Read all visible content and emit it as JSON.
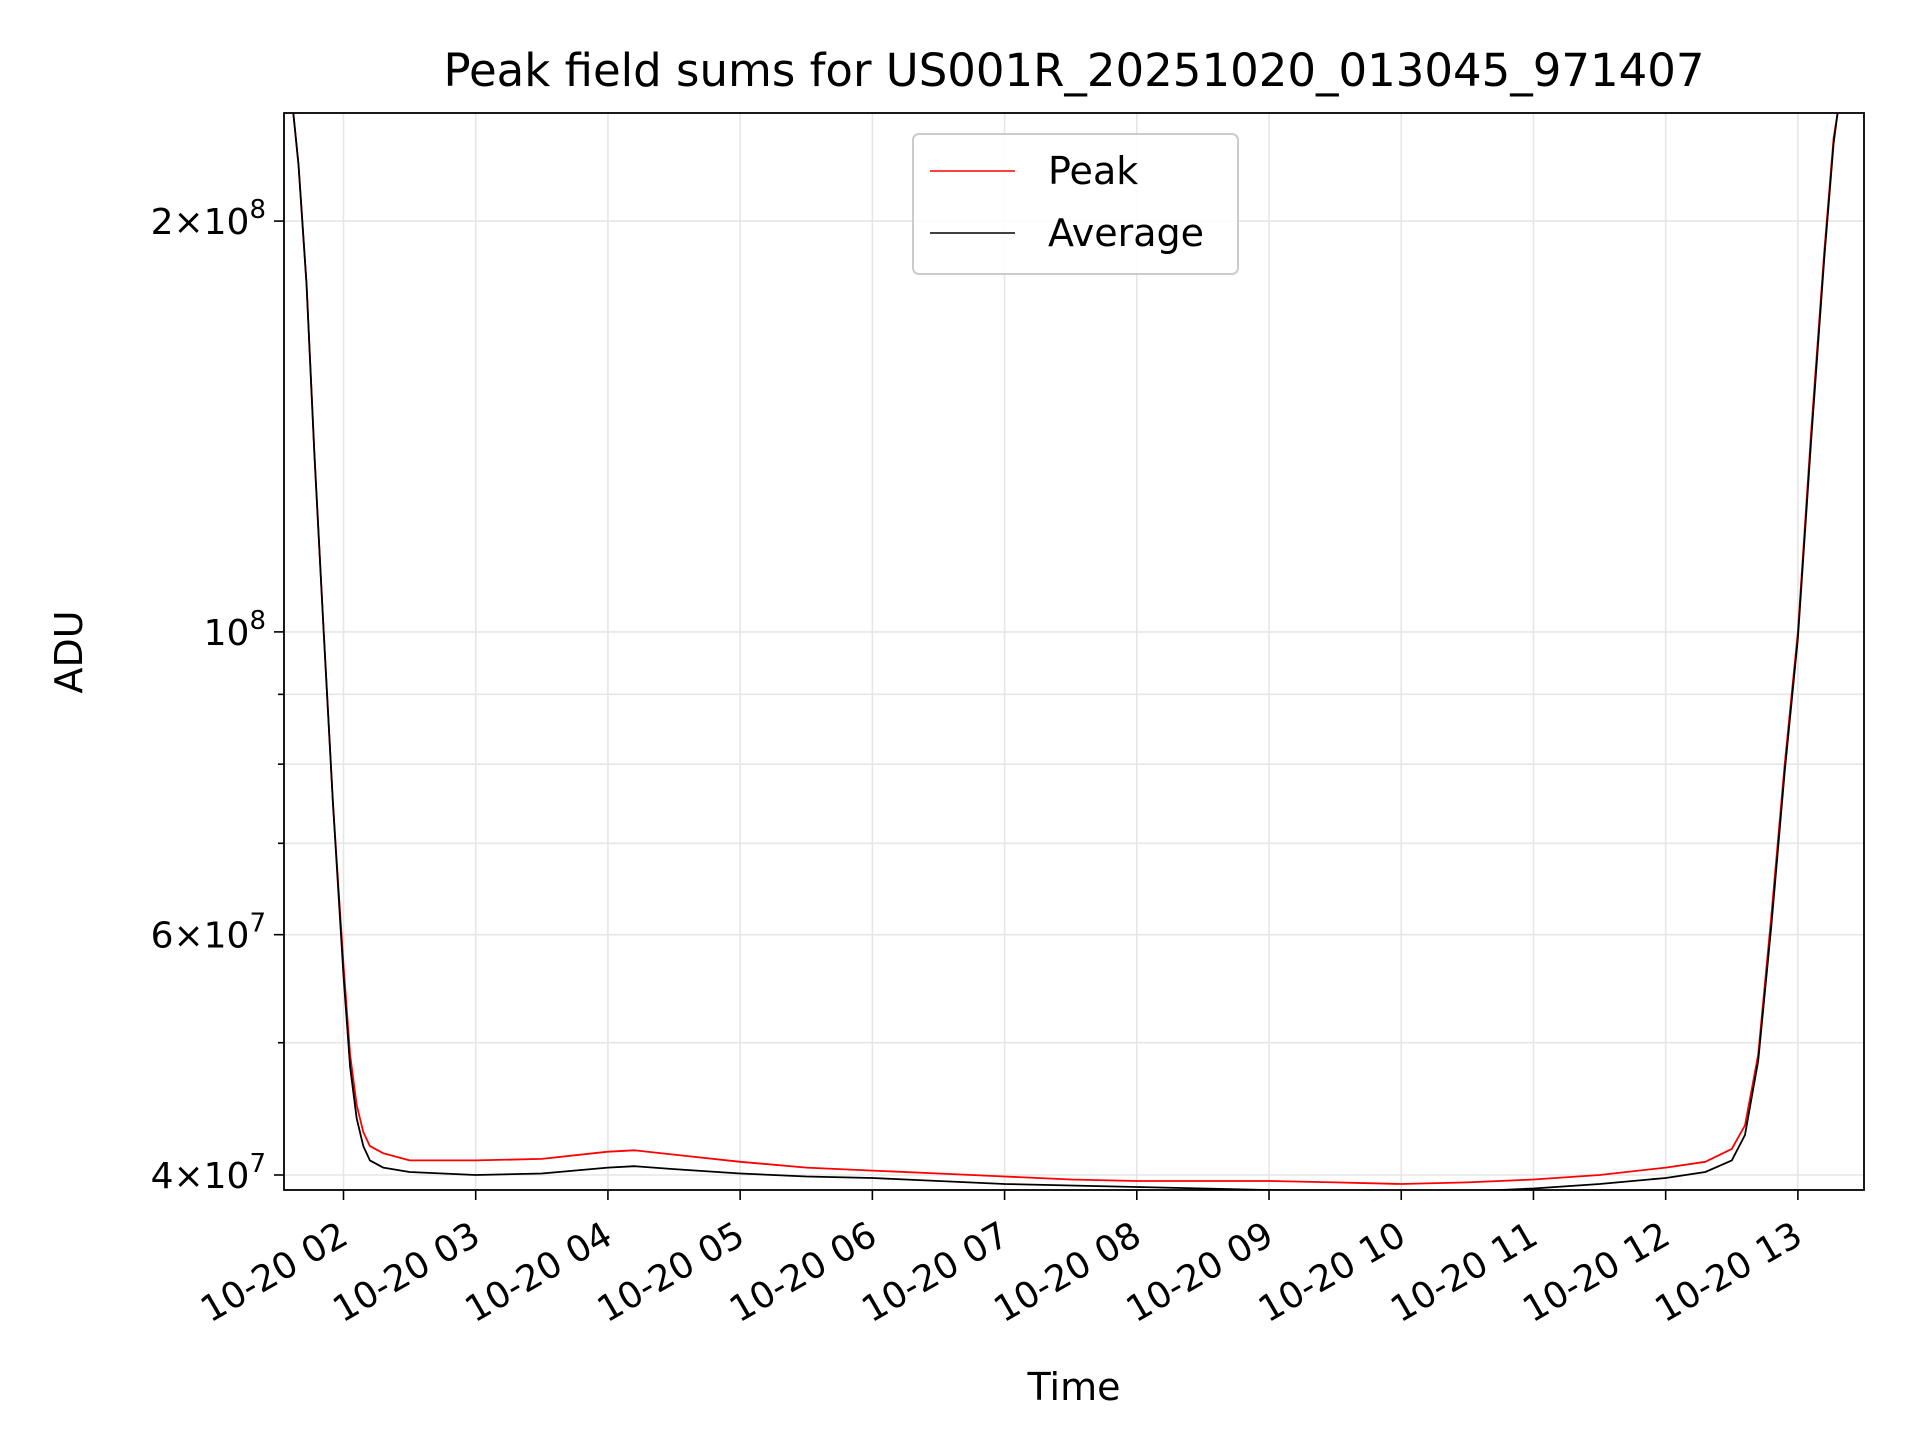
{
  "chart_data": {
    "type": "line",
    "title": "Peak field sums for US001R_20251020_013045_971407",
    "xlabel": "Time",
    "ylabel": "ADU",
    "yscale": "log",
    "ylim": [
      39000000,
      240000000
    ],
    "xlim": [
      1.55,
      13.5
    ],
    "grid": true,
    "legend_position": "top-center",
    "x_ticks": [
      {
        "value": 2,
        "label": "10-20 02"
      },
      {
        "value": 3,
        "label": "10-20 03"
      },
      {
        "value": 4,
        "label": "10-20 04"
      },
      {
        "value": 5,
        "label": "10-20 05"
      },
      {
        "value": 6,
        "label": "10-20 06"
      },
      {
        "value": 7,
        "label": "10-20 07"
      },
      {
        "value": 8,
        "label": "10-20 08"
      },
      {
        "value": 9,
        "label": "10-20 09"
      },
      {
        "value": 10,
        "label": "10-20 10"
      },
      {
        "value": 11,
        "label": "10-20 11"
      },
      {
        "value": 12,
        "label": "10-20 12"
      },
      {
        "value": 13,
        "label": "10-20 13"
      }
    ],
    "y_ticks_major": [
      {
        "value": 40000000,
        "mantissa": "4",
        "exp": "7"
      },
      {
        "value": 60000000,
        "mantissa": "6",
        "exp": "7"
      },
      {
        "value": 100000000,
        "mantissa": "",
        "exp": "8"
      },
      {
        "value": 200000000,
        "mantissa": "2",
        "exp": "8"
      }
    ],
    "y_ticks_minor": [
      50000000,
      70000000,
      80000000,
      90000000
    ],
    "series": [
      {
        "name": "Peak",
        "color": "#ff0000",
        "x": [
          1.62,
          1.66,
          1.72,
          1.78,
          1.85,
          1.92,
          2.0,
          2.05,
          2.1,
          2.15,
          2.2,
          2.3,
          2.5,
          3.0,
          3.5,
          4.0,
          4.2,
          4.5,
          5.0,
          5.5,
          6.0,
          6.5,
          7.0,
          7.5,
          8.0,
          8.5,
          9.0,
          9.5,
          10.0,
          10.5,
          11.0,
          11.5,
          12.0,
          12.3,
          12.5,
          12.6,
          12.7,
          12.8,
          12.9,
          13.0,
          13.1,
          13.2,
          13.27,
          13.3
        ],
        "y": [
          240000000,
          220000000,
          180000000,
          135000000,
          100000000,
          75000000,
          57000000,
          49000000,
          45000000,
          43000000,
          42000000,
          41500000,
          41000000,
          41000000,
          41100000,
          41600000,
          41700000,
          41400000,
          40900000,
          40500000,
          40300000,
          40100000,
          39900000,
          39700000,
          39600000,
          39600000,
          39600000,
          39500000,
          39400000,
          39500000,
          39700000,
          40000000,
          40500000,
          40900000,
          41800000,
          43500000,
          49000000,
          62000000,
          80000000,
          100000000,
          140000000,
          190000000,
          230000000,
          240000000
        ]
      },
      {
        "name": "Average",
        "color": "#000000",
        "x": [
          1.62,
          1.66,
          1.72,
          1.78,
          1.85,
          1.92,
          2.0,
          2.05,
          2.1,
          2.15,
          2.2,
          2.3,
          2.5,
          3.0,
          3.5,
          4.0,
          4.2,
          4.5,
          5.0,
          5.5,
          6.0,
          6.5,
          7.0,
          7.5,
          8.0,
          8.5,
          9.0,
          9.5,
          10.0,
          10.5,
          11.0,
          11.5,
          12.0,
          12.3,
          12.5,
          12.6,
          12.7,
          12.8,
          12.9,
          13.0,
          13.1,
          13.2,
          13.27,
          13.3
        ],
        "y": [
          240000000,
          220000000,
          180000000,
          135000000,
          100000000,
          75000000,
          56000000,
          48000000,
          44000000,
          42000000,
          41000000,
          40500000,
          40200000,
          40000000,
          40100000,
          40500000,
          40600000,
          40400000,
          40100000,
          39900000,
          39800000,
          39600000,
          39400000,
          39300000,
          39200000,
          39100000,
          39000000,
          38900000,
          38800000,
          38900000,
          39100000,
          39400000,
          39800000,
          40200000,
          41000000,
          42800000,
          48500000,
          61000000,
          79000000,
          99000000,
          138000000,
          188000000,
          228000000,
          240000000
        ]
      }
    ]
  }
}
